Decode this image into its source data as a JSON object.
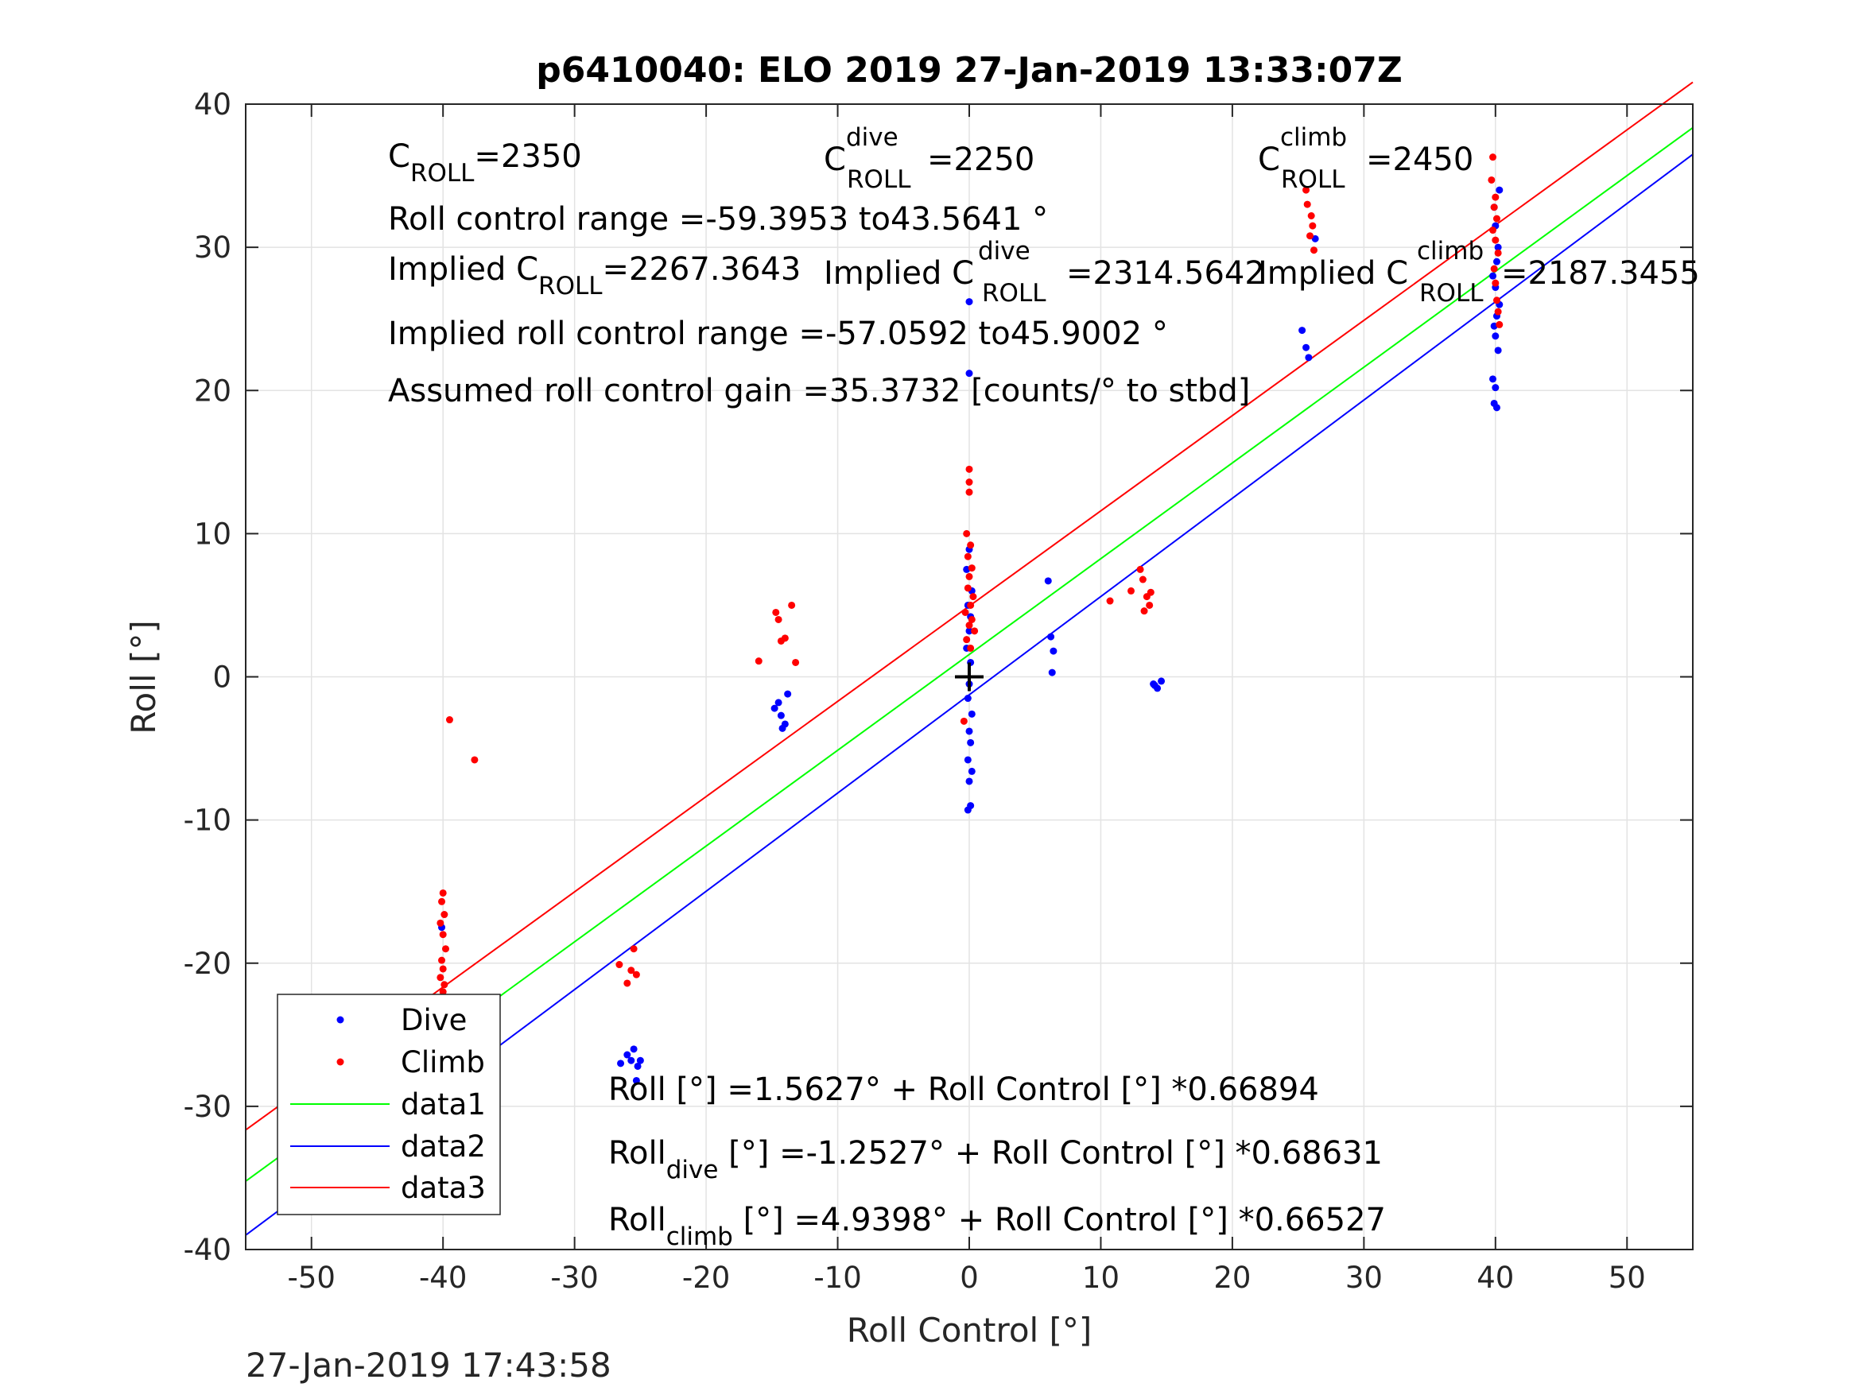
{
  "chart_data": {
    "type": "scatter",
    "title": "p6410040: ELO 2019 27-Jan-2019 13:33:07Z",
    "xlabel": "Roll Control [°]",
    "ylabel": "Roll [°]",
    "xlim": [
      -55,
      55
    ],
    "ylim": [
      -40,
      40
    ],
    "xticks": [
      -50,
      -40,
      -30,
      -20,
      -10,
      0,
      10,
      20,
      30,
      40,
      50
    ],
    "yticks": [
      -40,
      -30,
      -20,
      -10,
      0,
      10,
      20,
      30,
      40
    ],
    "grid": true,
    "legend_position": "bottom-left",
    "timestamp": "27-Jan-2019 17:43:58",
    "series": [
      {
        "name": "Dive",
        "kind": "points",
        "color": "#0000ff",
        "points": [
          [
            -47.6,
            -24.1
          ],
          [
            -40.1,
            -17.5
          ],
          [
            -40.0,
            -24.5
          ],
          [
            -40.2,
            -25.5
          ],
          [
            -39.9,
            -26.5
          ],
          [
            -40.1,
            -27.2
          ],
          [
            -40.0,
            -27.8
          ],
          [
            -39.8,
            -28.5
          ],
          [
            -40.2,
            -28.9
          ],
          [
            -40.0,
            -29.6
          ],
          [
            -39.9,
            -30.2
          ],
          [
            -40.1,
            -30.8
          ],
          [
            -40.0,
            -31.5
          ],
          [
            -39.7,
            -26.0
          ],
          [
            -40.3,
            -28.0
          ],
          [
            -26.5,
            -27.0
          ],
          [
            -26.0,
            -26.4
          ],
          [
            -25.7,
            -26.8
          ],
          [
            -25.5,
            -26.0
          ],
          [
            -25.2,
            -27.2
          ],
          [
            -25.0,
            -26.8
          ],
          [
            -25.3,
            -28.2
          ],
          [
            -14.8,
            -2.2
          ],
          [
            -14.3,
            -2.7
          ],
          [
            -14.0,
            -3.3
          ],
          [
            -14.2,
            -3.6
          ],
          [
            -13.8,
            -1.2
          ],
          [
            -14.5,
            -1.8
          ],
          [
            0.0,
            26.2
          ],
          [
            0.0,
            21.2
          ],
          [
            0.0,
            8.9
          ],
          [
            -0.2,
            7.5
          ],
          [
            0.2,
            6.0
          ],
          [
            -0.1,
            5.0
          ],
          [
            0.1,
            4.2
          ],
          [
            0.0,
            3.2
          ],
          [
            -0.2,
            2.0
          ],
          [
            0.1,
            1.0
          ],
          [
            0.0,
            -0.5
          ],
          [
            -0.1,
            -1.5
          ],
          [
            0.2,
            -2.6
          ],
          [
            0.0,
            -3.8
          ],
          [
            0.1,
            -4.6
          ],
          [
            -0.1,
            -5.8
          ],
          [
            0.2,
            -6.6
          ],
          [
            0.0,
            -7.3
          ],
          [
            0.1,
            -9.0
          ],
          [
            -0.1,
            -9.3
          ],
          [
            6.0,
            6.7
          ],
          [
            6.2,
            2.8
          ],
          [
            6.4,
            1.8
          ],
          [
            6.3,
            0.3
          ],
          [
            14.0,
            -0.5
          ],
          [
            14.3,
            -0.8
          ],
          [
            14.6,
            -0.3
          ],
          [
            14.1,
            -0.6
          ],
          [
            25.3,
            24.2
          ],
          [
            25.6,
            23.0
          ],
          [
            25.8,
            22.3
          ],
          [
            26.3,
            30.6
          ],
          [
            39.9,
            32.8
          ],
          [
            40.0,
            31.5
          ],
          [
            40.2,
            30.0
          ],
          [
            40.1,
            29.0
          ],
          [
            39.8,
            28.0
          ],
          [
            40.0,
            27.2
          ],
          [
            40.3,
            26.0
          ],
          [
            40.1,
            25.2
          ],
          [
            39.9,
            24.5
          ],
          [
            40.0,
            23.8
          ],
          [
            40.2,
            22.8
          ],
          [
            39.8,
            20.8
          ],
          [
            40.0,
            20.2
          ],
          [
            39.9,
            19.1
          ],
          [
            40.1,
            18.8
          ],
          [
            40.3,
            34.0
          ]
        ]
      },
      {
        "name": "Climb",
        "kind": "points",
        "color": "#ff0000",
        "points": [
          [
            -47.6,
            -27.0
          ],
          [
            -39.5,
            -3.0
          ],
          [
            -37.6,
            -5.8
          ],
          [
            -40.0,
            -15.1
          ],
          [
            -40.1,
            -15.7
          ],
          [
            -39.9,
            -16.6
          ],
          [
            -40.2,
            -17.2
          ],
          [
            -40.0,
            -18.0
          ],
          [
            -39.8,
            -19.0
          ],
          [
            -40.1,
            -19.8
          ],
          [
            -40.0,
            -20.4
          ],
          [
            -40.2,
            -21.0
          ],
          [
            -39.9,
            -21.5
          ],
          [
            -40.0,
            -22.0
          ],
          [
            -40.1,
            -22.5
          ],
          [
            -39.8,
            -23.0
          ],
          [
            -40.0,
            -23.8
          ],
          [
            -26.6,
            -20.1
          ],
          [
            -26.0,
            -21.4
          ],
          [
            -25.7,
            -20.5
          ],
          [
            -25.5,
            -19.0
          ],
          [
            -25.3,
            -20.8
          ],
          [
            -16.0,
            1.1
          ],
          [
            -14.7,
            4.5
          ],
          [
            -14.5,
            4.0
          ],
          [
            -14.3,
            2.5
          ],
          [
            -14.0,
            2.7
          ],
          [
            -13.5,
            5.0
          ],
          [
            -13.2,
            1.0
          ],
          [
            0.0,
            14.5
          ],
          [
            0.0,
            13.6
          ],
          [
            0.0,
            12.9
          ],
          [
            -0.2,
            10.0
          ],
          [
            0.1,
            9.2
          ],
          [
            -0.1,
            8.4
          ],
          [
            0.2,
            7.6
          ],
          [
            0.0,
            7.0
          ],
          [
            -0.1,
            6.2
          ],
          [
            0.3,
            5.6
          ],
          [
            0.1,
            5.0
          ],
          [
            -0.3,
            4.5
          ],
          [
            0.2,
            4.0
          ],
          [
            0.0,
            3.6
          ],
          [
            0.4,
            3.2
          ],
          [
            -0.2,
            2.6
          ],
          [
            0.1,
            2.0
          ],
          [
            -0.4,
            -3.1
          ],
          [
            10.7,
            5.3
          ],
          [
            12.3,
            6.0
          ],
          [
            13.0,
            7.5
          ],
          [
            13.2,
            6.8
          ],
          [
            13.5,
            5.6
          ],
          [
            13.8,
            5.9
          ],
          [
            13.3,
            4.6
          ],
          [
            13.7,
            5.0
          ],
          [
            25.6,
            34.0
          ],
          [
            25.7,
            33.0
          ],
          [
            26.0,
            32.2
          ],
          [
            26.1,
            31.5
          ],
          [
            25.9,
            30.8
          ],
          [
            26.2,
            29.8
          ],
          [
            39.8,
            36.3
          ],
          [
            39.7,
            34.7
          ],
          [
            40.0,
            33.5
          ],
          [
            39.9,
            32.8
          ],
          [
            40.1,
            32.0
          ],
          [
            39.8,
            31.2
          ],
          [
            40.0,
            30.5
          ],
          [
            40.2,
            29.6
          ],
          [
            39.9,
            28.5
          ],
          [
            40.0,
            27.5
          ],
          [
            40.1,
            26.3
          ],
          [
            40.2,
            25.5
          ],
          [
            40.3,
            24.6
          ]
        ]
      },
      {
        "name": "data1",
        "kind": "line",
        "color": "#00ff00",
        "x": [
          -55,
          55
        ],
        "y": [
          -35.23,
          38.35
        ]
      },
      {
        "name": "data2",
        "kind": "line",
        "color": "#0000ff",
        "x": [
          -55,
          55
        ],
        "y": [
          -39.0,
          36.49
        ]
      },
      {
        "name": "data3",
        "kind": "line",
        "color": "#ff0000",
        "x": [
          -55,
          55
        ],
        "y": [
          -31.65,
          41.53
        ]
      }
    ],
    "crosshair": {
      "x": 0,
      "y": 0,
      "color": "#000000"
    },
    "annotations": {
      "c_roll": {
        "base": "C",
        "sub": "ROLL",
        "text": "=2350"
      },
      "c_roll_dive": {
        "base": "C",
        "sup": "dive",
        "sub": "ROLL",
        "text": "=2250"
      },
      "c_roll_climb": {
        "base": "C",
        "sup": "climb",
        "sub": "ROLL",
        "text": "=2450"
      },
      "roll_range": "Roll control range =-59.3953 to43.5641 °",
      "implied_c_roll": {
        "base": "Implied C",
        "sub": "ROLL",
        "text": "=2267.3643"
      },
      "implied_c_roll_dive": {
        "base": "Implied C",
        "sup": "dive",
        "sub": "ROLL",
        "text": "=2314.5642"
      },
      "implied_c_roll_climb": {
        "base": "Implied C",
        "sup": "climb",
        "sub": "ROLL",
        "text": "=2187.3455"
      },
      "implied_range": "Implied roll control range =-57.0592 to45.9002 °",
      "gain": "Assumed roll control gain =35.3732 [counts/° to stbd]",
      "fit_all": "Roll [°] =1.5627° + Roll Control [°] *0.66894",
      "fit_dive": {
        "base": "Roll",
        "sub": "dive",
        "text": " [°] =-1.2527° + Roll Control [°] *0.68631"
      },
      "fit_climb": {
        "base": "Roll",
        "sub": "climb",
        "text": " [°] =4.9398° + Roll Control [°] *0.66527"
      }
    }
  }
}
